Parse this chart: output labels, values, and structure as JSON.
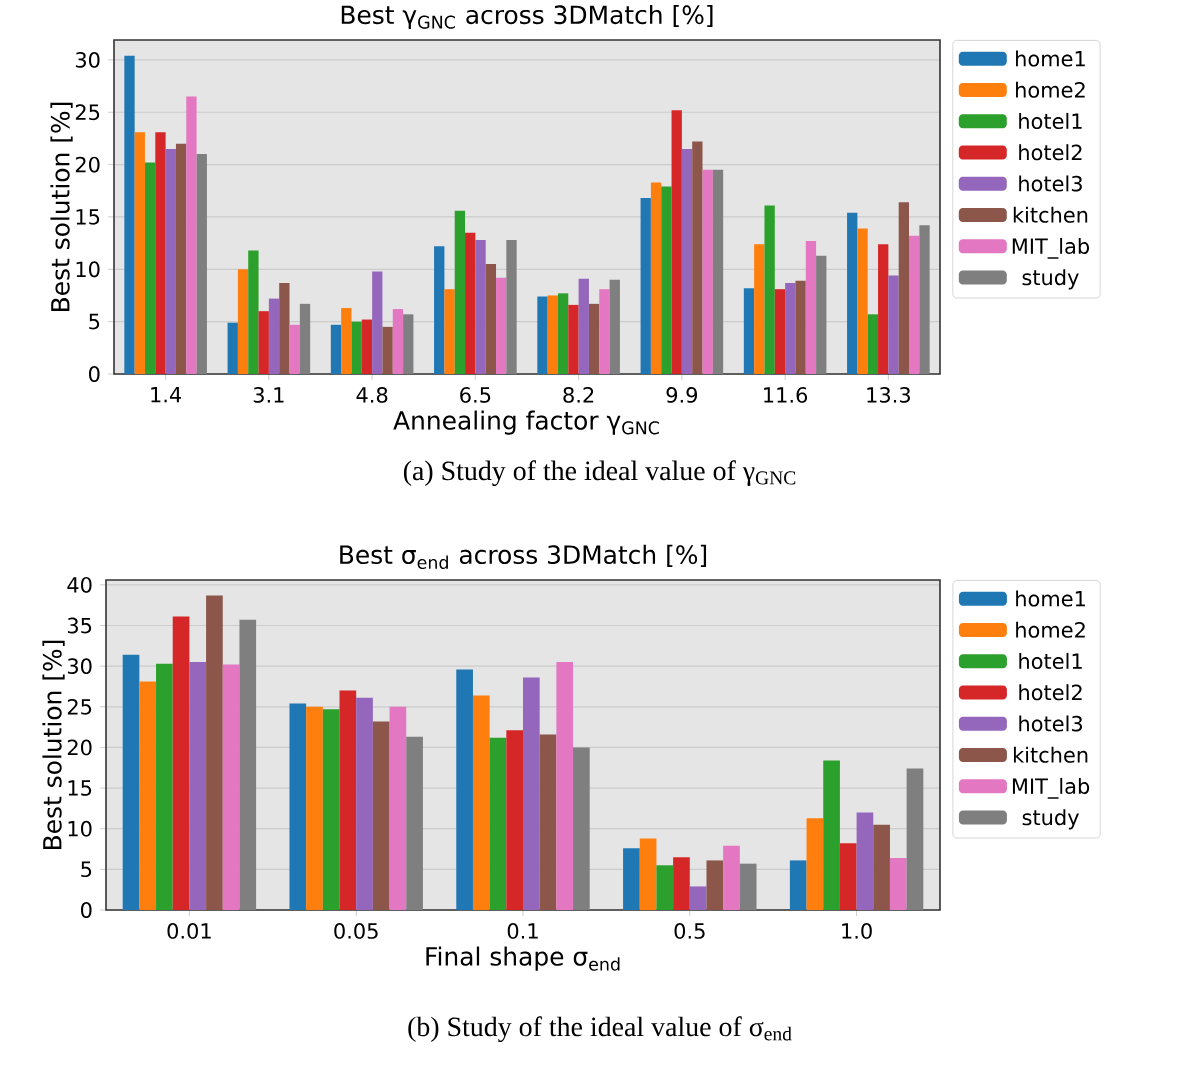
{
  "chart_data": [
    {
      "type": "bar",
      "title": "Best γ$_{GNC}$ across 3DMatch [%]",
      "xlabel": "Annealing factor γ$_{GNC}$",
      "ylabel": "Best solution [%]",
      "categories": [
        "1.4",
        "3.1",
        "4.8",
        "6.5",
        "8.2",
        "9.9",
        "11.6",
        "13.3"
      ],
      "series": [
        {
          "name": "home1",
          "color": "#1f77b4",
          "values": [
            30.4,
            4.9,
            4.7,
            12.2,
            7.4,
            16.8,
            8.2,
            15.4
          ]
        },
        {
          "name": "home2",
          "color": "#ff7f0e",
          "values": [
            23.1,
            10.0,
            6.3,
            8.1,
            7.5,
            18.3,
            12.4,
            13.9
          ]
        },
        {
          "name": "hotel1",
          "color": "#2ca02c",
          "values": [
            20.2,
            11.8,
            5.0,
            15.6,
            7.7,
            17.9,
            16.1,
            5.7
          ]
        },
        {
          "name": "hotel2",
          "color": "#d62728",
          "values": [
            23.1,
            6.0,
            5.2,
            13.5,
            6.6,
            25.2,
            8.1,
            12.4
          ]
        },
        {
          "name": "hotel3",
          "color": "#9467bd",
          "values": [
            21.5,
            7.2,
            9.8,
            12.8,
            9.1,
            21.5,
            8.7,
            9.4
          ]
        },
        {
          "name": "kitchen",
          "color": "#8c564b",
          "values": [
            22.0,
            8.7,
            4.5,
            10.5,
            6.7,
            22.2,
            8.9,
            16.4
          ]
        },
        {
          "name": "MIT_lab",
          "color": "#e377c2",
          "values": [
            26.5,
            4.7,
            6.2,
            9.2,
            8.1,
            19.5,
            12.7,
            13.2
          ]
        },
        {
          "name": "study",
          "color": "#7f7f7f",
          "values": [
            21.0,
            6.7,
            5.7,
            12.8,
            9.0,
            19.5,
            11.3,
            14.2
          ]
        }
      ],
      "ylim": [
        0,
        31.9
      ],
      "yticks": [
        0,
        5,
        10,
        15,
        20,
        25,
        30
      ],
      "grid": "y",
      "legend": "right",
      "annotations": [
        "(a) Study of the ideal value of γ$_{GNC}$"
      ]
    },
    {
      "type": "bar",
      "title": "Best σ$_{end}$ across 3DMatch [%]",
      "xlabel": "Final shape σ$_{end}$",
      "ylabel": "Best solution [%]",
      "categories": [
        "0.01",
        "0.05",
        "0.1",
        "0.5",
        "1.0"
      ],
      "series": [
        {
          "name": "home1",
          "color": "#1f77b4",
          "values": [
            31.4,
            25.4,
            29.6,
            7.6,
            6.1
          ]
        },
        {
          "name": "home2",
          "color": "#ff7f0e",
          "values": [
            28.1,
            25.0,
            26.4,
            8.8,
            11.3
          ]
        },
        {
          "name": "hotel1",
          "color": "#2ca02c",
          "values": [
            30.3,
            24.7,
            21.2,
            5.5,
            18.4
          ]
        },
        {
          "name": "hotel2",
          "color": "#d62728",
          "values": [
            36.1,
            27.0,
            22.1,
            6.5,
            8.2
          ]
        },
        {
          "name": "hotel3",
          "color": "#9467bd",
          "values": [
            30.5,
            26.1,
            28.6,
            2.9,
            12.0
          ]
        },
        {
          "name": "kitchen",
          "color": "#8c564b",
          "values": [
            38.7,
            23.2,
            21.6,
            6.1,
            10.5
          ]
        },
        {
          "name": "MIT_lab",
          "color": "#e377c2",
          "values": [
            30.2,
            25.0,
            30.5,
            7.9,
            6.4
          ]
        },
        {
          "name": "study",
          "color": "#7f7f7f",
          "values": [
            35.7,
            21.3,
            20.0,
            5.7,
            17.4
          ]
        }
      ],
      "ylim": [
        0,
        40.6
      ],
      "yticks": [
        0,
        5,
        10,
        15,
        20,
        25,
        30,
        35,
        40
      ],
      "grid": "y",
      "legend": "right",
      "annotations": [
        "(b) Study of the ideal value of σ$_{end}$"
      ]
    }
  ]
}
